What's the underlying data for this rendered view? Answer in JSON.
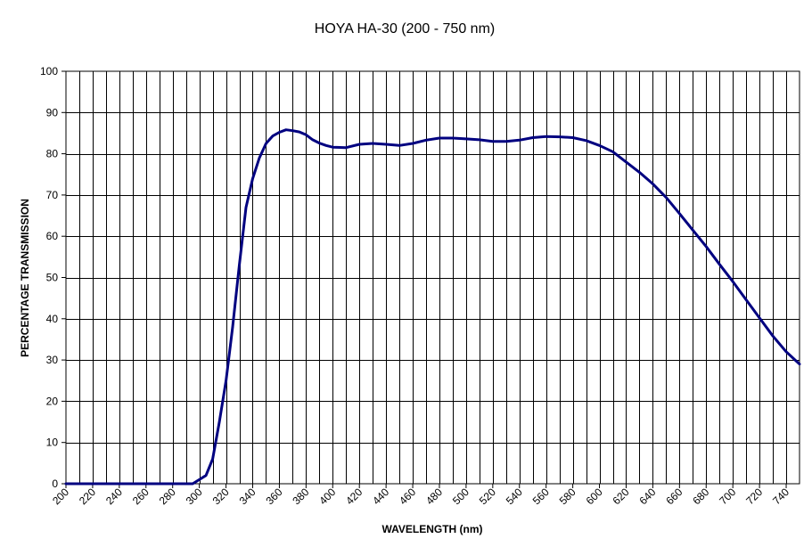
{
  "chart_data": {
    "type": "line",
    "title": "HOYA HA-30 (200 - 750 nm)",
    "xlabel": "WAVELENGTH (nm)",
    "ylabel": "PERCENTAGE TRANSMISSION",
    "xlim": [
      200,
      750
    ],
    "ylim": [
      0,
      100
    ],
    "x_major_ticks": [
      200,
      220,
      240,
      260,
      280,
      300,
      320,
      340,
      360,
      380,
      400,
      420,
      440,
      460,
      480,
      500,
      520,
      540,
      560,
      580,
      600,
      620,
      640,
      660,
      680,
      700,
      720,
      740
    ],
    "x_tick_labels": [
      "200",
      "220",
      "240",
      "260",
      "280",
      "300",
      "320",
      "340",
      "360",
      "380",
      "400",
      "420",
      "440",
      "460",
      "480",
      "500",
      "520",
      "540",
      "560",
      "580",
      "600",
      "620",
      "640",
      "660",
      "680",
      "700",
      "720",
      "740"
    ],
    "x_grid_step": 10,
    "y_ticks": [
      0,
      10,
      20,
      30,
      40,
      50,
      60,
      70,
      80,
      90,
      100
    ],
    "y_tick_labels": [
      "0",
      "10",
      "20",
      "30",
      "40",
      "50",
      "60",
      "70",
      "80",
      "90",
      "100"
    ],
    "grid": true,
    "legend": false,
    "line_color": "#000080",
    "series": [
      {
        "x": [
          200,
          250,
          280,
          290,
          295,
          300,
          305,
          310,
          315,
          320,
          325,
          330,
          335,
          340,
          345,
          350,
          355,
          360,
          365,
          370,
          375,
          380,
          385,
          390,
          395,
          400,
          410,
          420,
          430,
          440,
          450,
          460,
          470,
          480,
          490,
          500,
          510,
          520,
          530,
          540,
          550,
          560,
          570,
          580,
          590,
          600,
          610,
          620,
          630,
          640,
          650,
          660,
          670,
          680,
          690,
          700,
          710,
          720,
          730,
          740,
          750
        ],
        "y": [
          0,
          0,
          0,
          0,
          0,
          1,
          2,
          6,
          15,
          25,
          38,
          53,
          67,
          74,
          79,
          82.5,
          84.3,
          85.2,
          85.8,
          85.6,
          85.3,
          84.6,
          83.4,
          82.6,
          82.0,
          81.6,
          81.5,
          82.3,
          82.5,
          82.3,
          82.0,
          82.5,
          83.3,
          83.8,
          83.8,
          83.6,
          83.4,
          83.0,
          83.0,
          83.3,
          83.9,
          84.2,
          84.1,
          83.9,
          83.2,
          82.0,
          80.5,
          78.0,
          75.5,
          72.7,
          69.4,
          65.5,
          61.5,
          57.5,
          53.2,
          49.0,
          44.6,
          40.2,
          35.8,
          32.0,
          29.0
        ]
      }
    ]
  }
}
